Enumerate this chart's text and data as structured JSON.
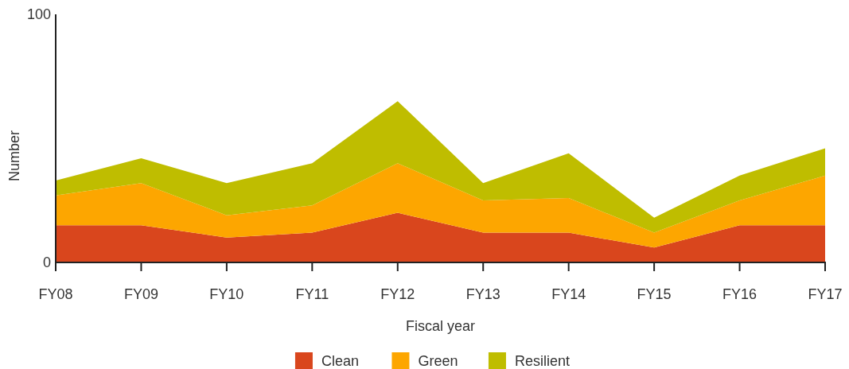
{
  "chart_data": {
    "type": "area",
    "stacked": true,
    "xlabel": "Fiscal year",
    "ylabel": "Number",
    "categories": [
      "FY08",
      "FY09",
      "FY10",
      "FY11",
      "FY12",
      "FY13",
      "FY14",
      "FY15",
      "FY16",
      "FY17"
    ],
    "series": [
      {
        "name": "Clean",
        "color": "#d9461d",
        "values": [
          15,
          15,
          10,
          12,
          20,
          12,
          12,
          6,
          15,
          15
        ]
      },
      {
        "name": "Green",
        "color": "#fda600",
        "values": [
          12,
          17,
          9,
          11,
          20,
          13,
          14,
          6,
          10,
          20
        ]
      },
      {
        "name": "Resilient",
        "color": "#bfbd00",
        "values": [
          6,
          10,
          13,
          17,
          25,
          7,
          18,
          6,
          10,
          11
        ]
      }
    ],
    "ylim": [
      0,
      100
    ],
    "yticks": [
      0,
      100
    ],
    "legend": "bottom"
  }
}
